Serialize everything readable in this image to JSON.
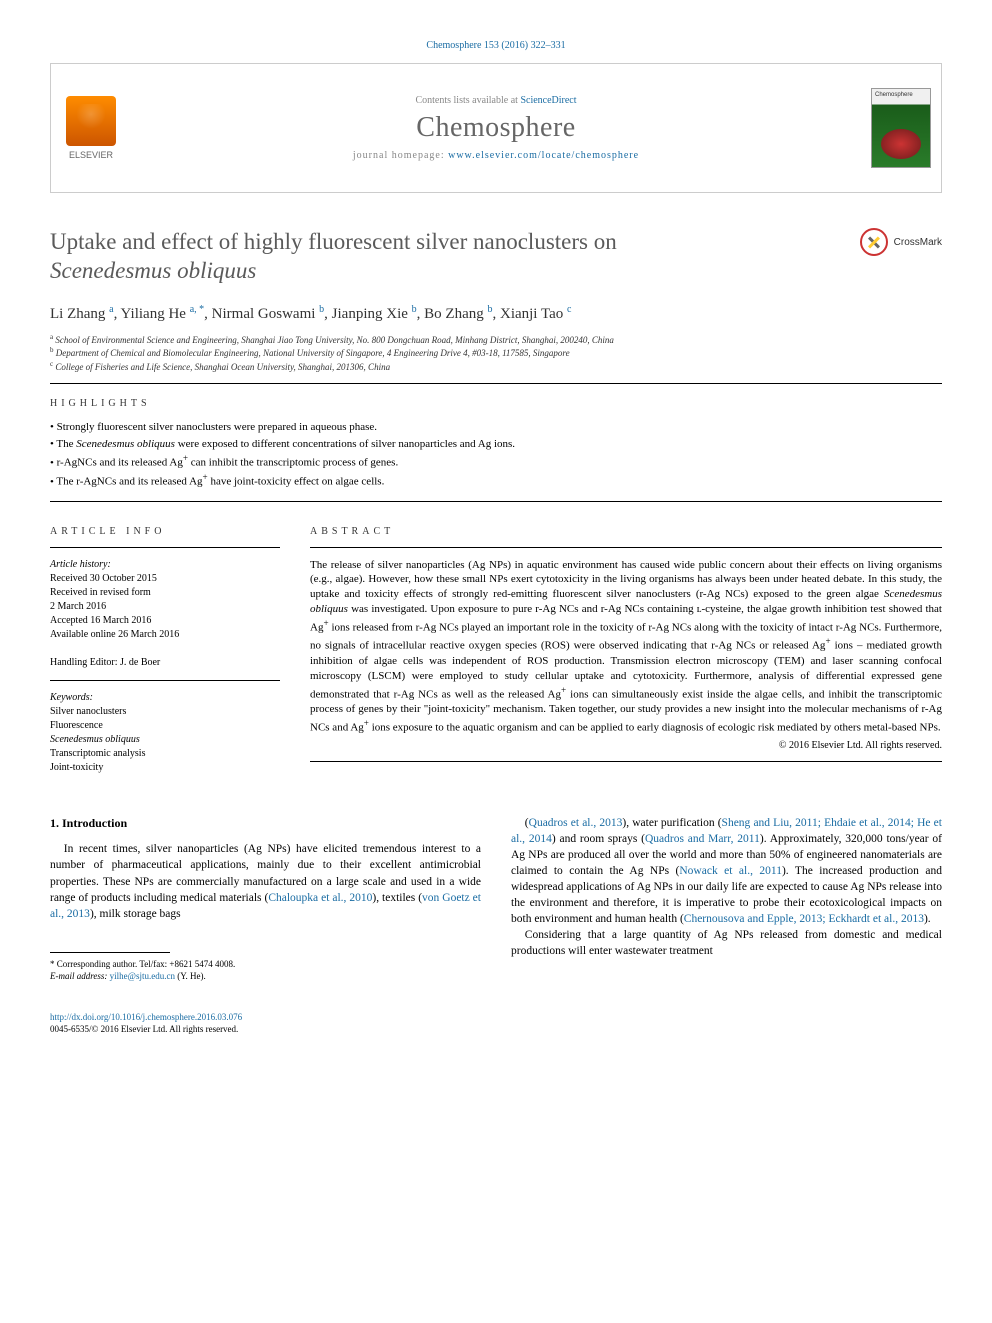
{
  "citation": "Chemosphere 153 (2016) 322–331",
  "header": {
    "contents_prefix": "Contents lists available at ",
    "contents_link": "ScienceDirect",
    "journal": "Chemosphere",
    "homepage_prefix": "journal homepage: ",
    "homepage_url": "www.elsevier.com/locate/chemosphere",
    "publisher": "ELSEVIER",
    "cover_label": "Chemosphere"
  },
  "title": {
    "line1": "Uptake and effect of highly fluorescent silver nanoclusters on",
    "line2_italic": "Scenedesmus obliquus"
  },
  "crossmark": "CrossMark",
  "authors_html": "Li Zhang <sup>a</sup>, Yiliang He <sup>a, *</sup>, Nirmal Goswami <sup>b</sup>, Jianping Xie <sup>b</sup>, Bo Zhang <sup>b</sup>, Xianji Tao <sup>c</sup>",
  "affiliations": [
    "a School of Environmental Science and Engineering, Shanghai Jiao Tong University, No. 800 Dongchuan Road, Minhang District, Shanghai, 200240, China",
    "b Department of Chemical and Biomolecular Engineering, National University of Singapore, 4 Engineering Drive 4, #03-18, 117585, Singapore",
    "c College of Fisheries and Life Science, Shanghai Ocean University, Shanghai, 201306, China"
  ],
  "highlights_label": "HIGHLIGHTS",
  "highlights": [
    "Strongly fluorescent silver nanoclusters were prepared in aqueous phase.",
    "The <i>Scenedesmus obliquus</i> were exposed to different concentrations of silver nanoparticles and Ag ions.",
    "r-AgNCs and its released Ag<sup>+</sup> can inhibit the transcriptomic process of genes.",
    "The r-AgNCs and its released Ag<sup>+</sup> have joint-toxicity effect on algae cells."
  ],
  "article_info_label": "ARTICLE INFO",
  "article_info": {
    "history_head": "Article history:",
    "received": "Received 30 October 2015",
    "revised1": "Received in revised form",
    "revised2": "2 March 2016",
    "accepted": "Accepted 16 March 2016",
    "online": "Available online 26 March 2016",
    "editor": "Handling Editor: J. de Boer",
    "keywords_head": "Keywords:",
    "keywords": [
      "Silver nanoclusters",
      "Fluorescence",
      "Scenedesmus obliquus",
      "Transcriptomic analysis",
      "Joint-toxicity"
    ]
  },
  "abstract_label": "ABSTRACT",
  "abstract": "The release of silver nanoparticles (Ag NPs) in aquatic environment has caused wide public concern about their effects on living organisms (e.g., algae). However, how these small NPs exert cytotoxicity in the living organisms has always been under heated debate. In this study, the uptake and toxicity effects of strongly red-emitting fluorescent silver nanoclusters (r-Ag NCs) exposed to the green algae <i>Scenedesmus obliquus</i> was investigated. Upon exposure to pure r-Ag NCs and r-Ag NCs containing ʟ-cysteine, the algae growth inhibition test showed that Ag<sup>+</sup> ions released from r-Ag NCs played an important role in the toxicity of r-Ag NCs along with the toxicity of intact r-Ag NCs. Furthermore, no signals of intracellular reactive oxygen species (ROS) were observed indicating that r-Ag NCs or released Ag<sup>+</sup> ions – mediated growth inhibition of algae cells was independent of ROS production. Transmission electron microscopy (TEM) and laser scanning confocal microscopy (LSCM) were employed to study cellular uptake and cytotoxicity. Furthermore, analysis of differential expressed gene demonstrated that r-Ag NCs as well as the released Ag<sup>+</sup> ions can simultaneously exist inside the algae cells, and inhibit the transcriptomic process of genes by their \"joint-toxicity\" mechanism. Taken together, our study provides a new insight into the molecular mechanisms of r-Ag NCs and Ag<sup>+</sup> ions exposure to the aquatic organism and can be applied to early diagnosis of ecologic risk mediated by others metal-based NPs.",
  "copyright": "© 2016 Elsevier Ltd. All rights reserved.",
  "intro_head": "1. Introduction",
  "intro_left": "In recent times, silver nanoparticles (Ag NPs) have elicited tremendous interest to a number of pharmaceutical applications, mainly due to their excellent antimicrobial properties. These NPs are commercially manufactured on a large scale and used in a wide range of products including medical materials (<a class=\"ref\">Chaloupka et al., 2010</a>), textiles (<a class=\"ref\">von Goetz et al., 2013</a>), milk storage bags",
  "intro_right": "(<a class=\"ref\">Quadros et al., 2013</a>), water purification (<a class=\"ref\">Sheng and Liu, 2011; Ehdaie et al., 2014; He et al., 2014</a>) and room sprays (<a class=\"ref\">Quadros and Marr, 2011</a>). Approximately, 320,000 tons/year of Ag NPs are produced all over the world and more than 50% of engineered nanomaterials are claimed to contain the Ag NPs (<a class=\"ref\">Nowack et al., 2011</a>). The increased production and widespread applications of Ag NPs in our daily life are expected to cause Ag NPs release into the environment and therefore, it is imperative to probe their ecotoxicological impacts on both environment and human health (<a class=\"ref\">Chernousova and Epple, 2013; Eckhardt et al., 2013</a>).",
  "intro_right2": "Considering that a large quantity of Ag NPs released from domestic and medical productions will enter wastewater treatment",
  "footnote": {
    "corr": "* Corresponding author. Tel/fax: +8621 5474 4008.",
    "email_label": "E-mail address:",
    "email": "yilhe@sjtu.edu.cn",
    "email_suffix": "(Y. He)."
  },
  "footer": {
    "doi": "http://dx.doi.org/10.1016/j.chemosphere.2016.03.076",
    "issn_copyright": "0045-6535/© 2016 Elsevier Ltd. All rights reserved."
  }
}
